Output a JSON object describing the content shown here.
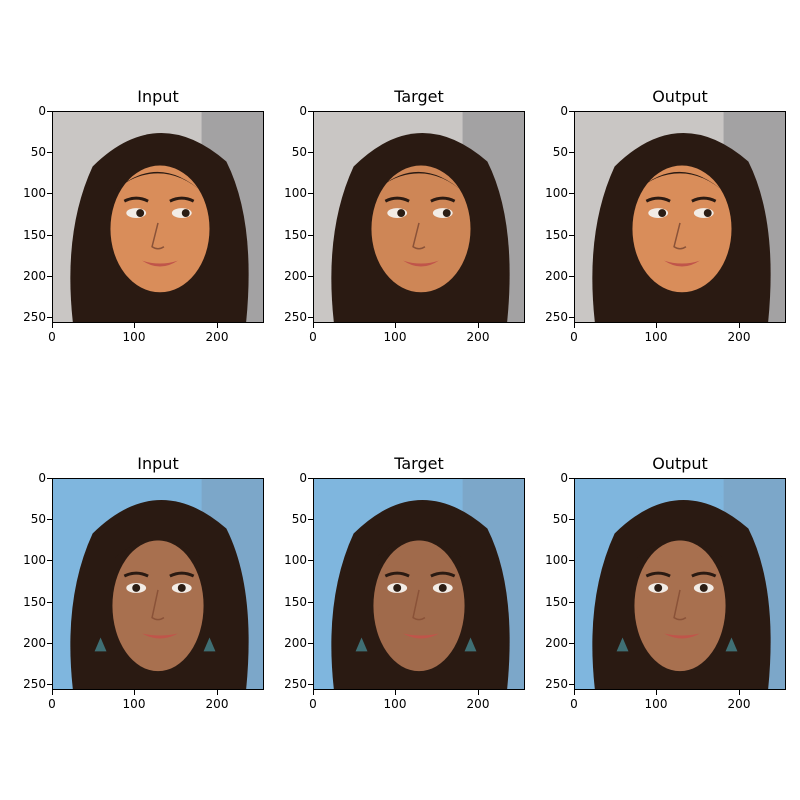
{
  "figure": {
    "rows": [
      {
        "panels": [
          {
            "title": "Input",
            "image": "face-photo-1-input"
          },
          {
            "title": "Target",
            "image": "face-photo-1-target"
          },
          {
            "title": "Output",
            "image": "face-photo-1-output"
          }
        ]
      },
      {
        "panels": [
          {
            "title": "Input",
            "image": "face-photo-2-input"
          },
          {
            "title": "Target",
            "image": "face-photo-2-target"
          },
          {
            "title": "Output",
            "image": "face-photo-2-output"
          }
        ]
      }
    ],
    "y_ticks": [
      "0",
      "50",
      "100",
      "150",
      "200",
      "250"
    ],
    "x_ticks": [
      "0",
      "100",
      "200"
    ],
    "colors": {
      "background": "#ffffff",
      "axis": "#000000",
      "skin_1": "#d98d5a",
      "hair": "#2a1a12",
      "bg_1": "#c9c6c4",
      "skin_2": "#a8704f",
      "bg_2": "#7fb6de"
    }
  }
}
